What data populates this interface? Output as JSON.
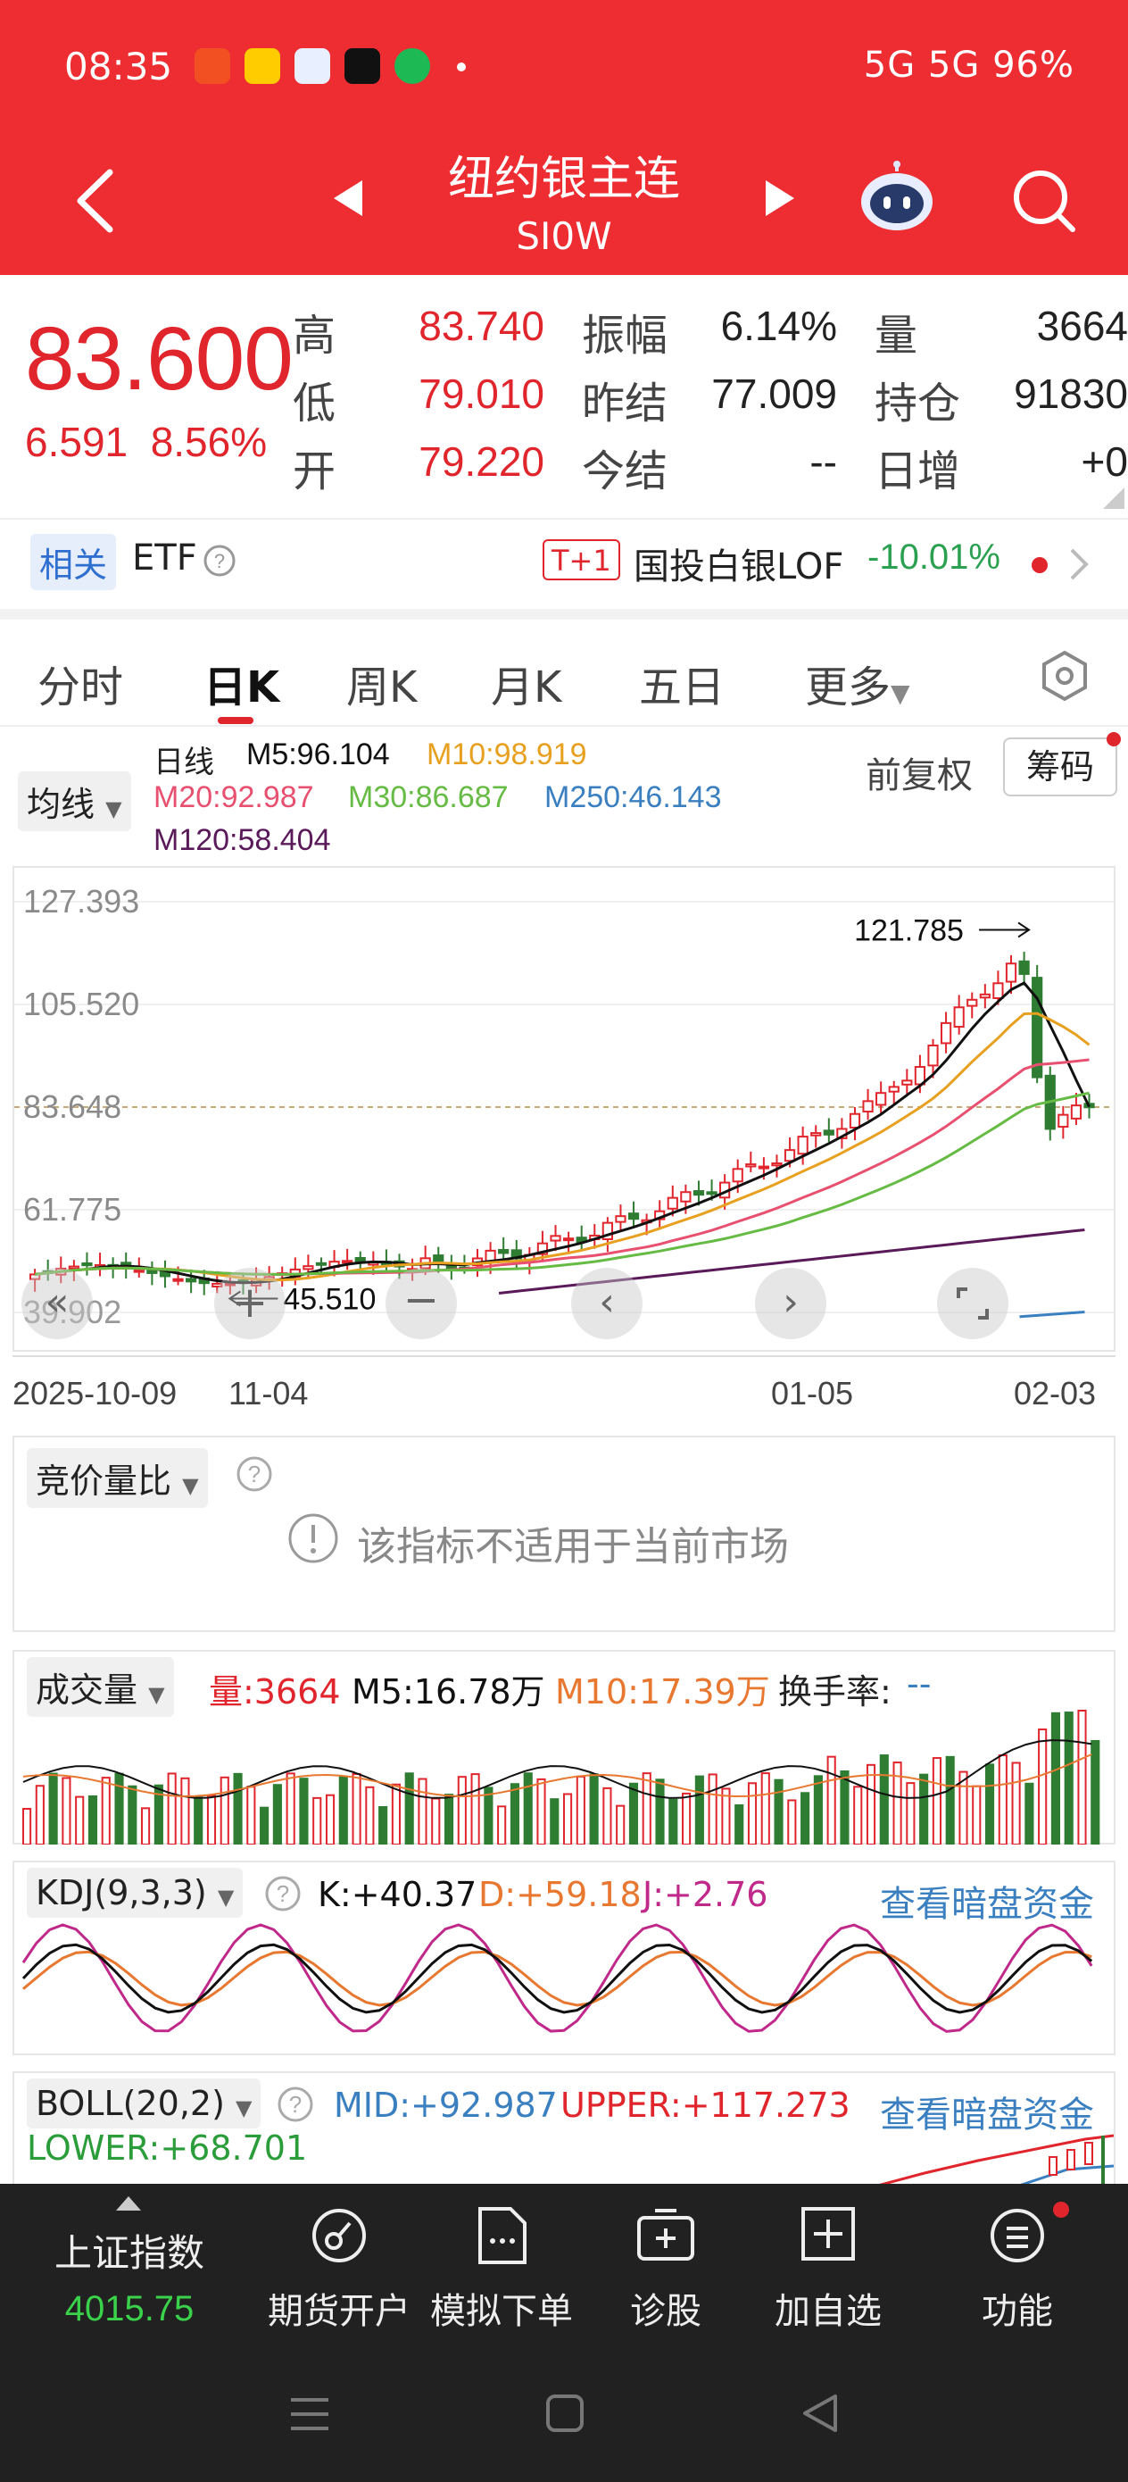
{
  "status": {
    "time": "08:35",
    "right": "5G 5G 96%"
  },
  "header": {
    "title": "纽约银主连",
    "subtitle": "SI0W"
  },
  "quote": {
    "price": "83.600",
    "change": "6.591",
    "change_pct": "8.56%",
    "rows": [
      {
        "l1": "高",
        "v1": "83.740",
        "l2": "振幅",
        "v2": "6.14%",
        "l3": "量",
        "v3": "3664"
      },
      {
        "l1": "低",
        "v1": "79.010",
        "l2": "昨结",
        "v2": "77.009",
        "l3": "持仓",
        "v3": "91830"
      },
      {
        "l1": "开",
        "v1": "79.220",
        "l2": "今结",
        "v2": "--",
        "l3": "日增",
        "v3": "+0"
      }
    ]
  },
  "etf": {
    "tag": "相关",
    "label": "ETF",
    "badge": "T+1",
    "name": "国投白银LOF",
    "change": "-10.01%"
  },
  "tabs": [
    "分时",
    "日K",
    "周K",
    "月K",
    "五日",
    "更多"
  ],
  "ma": {
    "selector": "均线",
    "line_label": "日线",
    "m5": "M5:96.104",
    "m10": "M10:98.919",
    "m20": "M20:92.987",
    "m30": "M30:86.687",
    "m250": "M250:46.143",
    "m120": "M120:58.404",
    "adjust": "前复权",
    "chips": "筹码"
  },
  "kline": {
    "y_labels": [
      "127.393",
      "105.520",
      "83.648",
      "61.775",
      "39.902"
    ],
    "high_label": "121.785",
    "low_label": "45.510",
    "dates": [
      "2025-10-09",
      "11-04",
      "01-05",
      "02-03"
    ]
  },
  "auction": {
    "selector": "竞价量比",
    "message": "该指标不适用于当前市场"
  },
  "volume": {
    "selector": "成交量",
    "vol": "量:3664",
    "m5": "M5:16.78万",
    "m10": "M10:17.39万",
    "turnover": "换手率:",
    "turnover_val": "--"
  },
  "kdj": {
    "selector": "KDJ(9,3,3)",
    "k": "K:+40.37",
    "d": "D:+59.18",
    "j": "J:+2.76",
    "link": "查看暗盘资金"
  },
  "boll": {
    "selector": "BOLL(20,2)",
    "mid": "MID:+92.987",
    "upper": "UPPER:+117.273",
    "lower": "LOWER:+68.701",
    "link": "查看暗盘资金"
  },
  "bottom_nav": {
    "index_name": "上证指数",
    "index_value": "4015.75",
    "items": [
      "期货开户",
      "模拟下单",
      "诊股",
      "加自选",
      "功能"
    ]
  },
  "colors": {
    "header": "#ee2d32",
    "up": "#e0252c",
    "down": "#2e7d32",
    "ma5": "#111111",
    "ma10": "#e8a020",
    "ma20": "#e85070",
    "ma30": "#66bb44",
    "ma250": "#3a7fc0",
    "ma120": "#5a1a5a"
  }
}
